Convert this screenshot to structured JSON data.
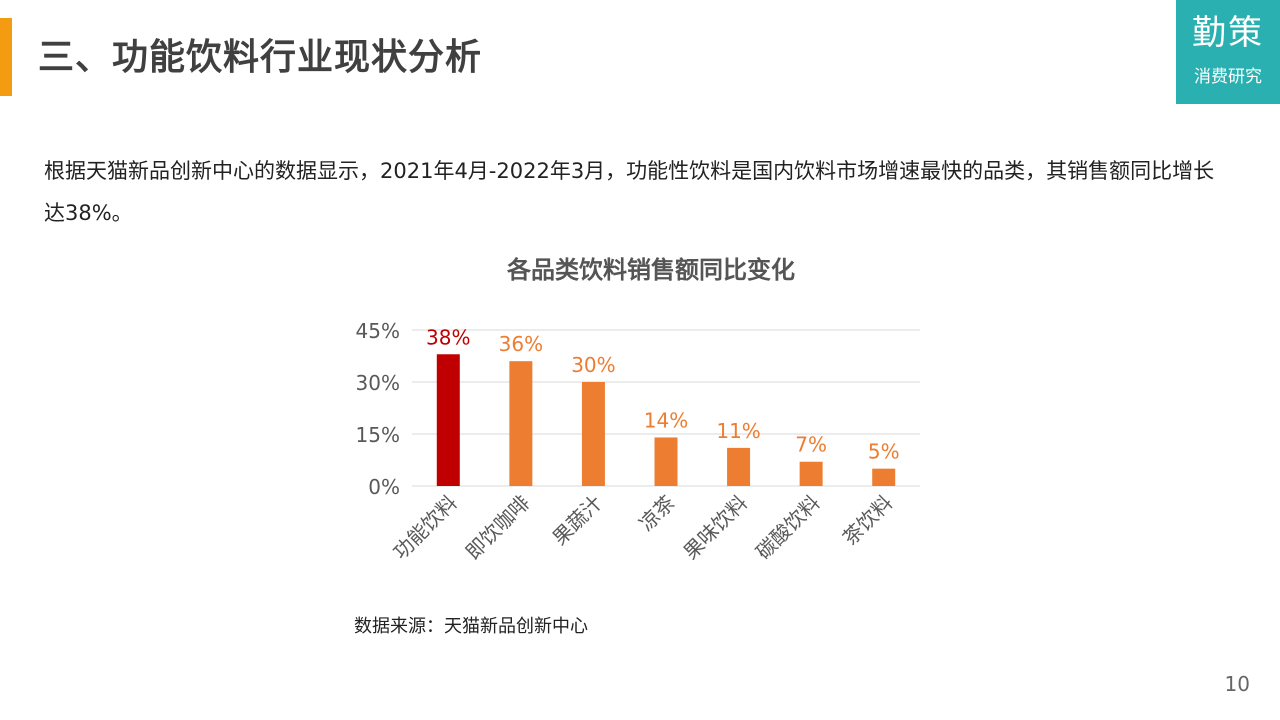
{
  "header": {
    "title": "三、功能饮料行业现状分析",
    "accent_color": "#f39c12"
  },
  "logo": {
    "main": "勤策",
    "sub": "消费研究",
    "color": "#2ab0b0"
  },
  "intro_text": "根据天猫新品创新中心的数据显示，2021年4月-2022年3月，功能性饮料是国内饮料市场增速最快的品类，其销售额同比增长达38%。",
  "chart_data": {
    "type": "bar",
    "title": "各品类饮料销售额同比变化",
    "categories": [
      "功能饮料",
      "即饮咖啡",
      "果蔬汁",
      "凉茶",
      "果味饮料",
      "碳酸饮料",
      "茶饮料"
    ],
    "values": [
      38,
      36,
      30,
      14,
      11,
      7,
      5
    ],
    "data_labels": [
      "38%",
      "36%",
      "30%",
      "14%",
      "11%",
      "7%",
      "5%"
    ],
    "yticks": [
      0,
      15,
      30,
      45
    ],
    "ytick_labels": [
      "0%",
      "15%",
      "30%",
      "45%"
    ],
    "ylim": [
      0,
      45
    ],
    "grid": true,
    "highlight_index": 0,
    "colors": {
      "highlight": "#c00000",
      "bar": "#ed7d31",
      "highlight_label": "#c00000",
      "label": "#ed7d31",
      "grid": "#d9d9d9",
      "tick": "#595959"
    }
  },
  "source": "数据来源：天猫新品创新中心",
  "page_number": "10"
}
